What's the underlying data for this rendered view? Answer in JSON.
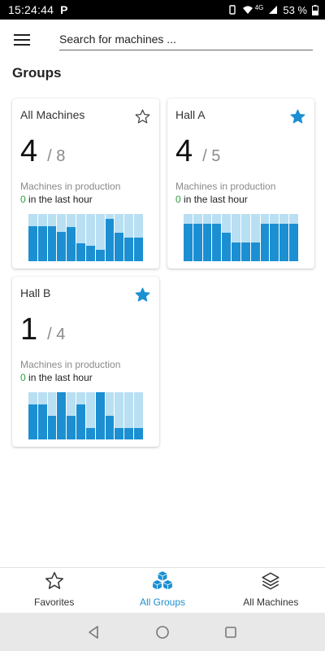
{
  "status_bar": {
    "time": "15:24:44",
    "app_letter": "P",
    "network": "4G",
    "battery": "53 %"
  },
  "search": {
    "placeholder": "Search for machines ..."
  },
  "section_title": "Groups",
  "colors": {
    "accent": "#1b8fd2",
    "bar_background": "#b9dff3",
    "zero_green": "#2e9e3f"
  },
  "groups": [
    {
      "name": "All Machines",
      "favorite": false,
      "count": "4",
      "total": "/ 8",
      "label": "Machines in production",
      "last_hour_count": "0",
      "last_hour_text": " in the last hour",
      "bars": [
        0.75,
        0.75,
        0.75,
        0.62,
        0.72,
        0.38,
        0.33,
        0.25,
        0.9,
        0.6,
        0.5,
        0.5
      ]
    },
    {
      "name": "Hall A",
      "favorite": true,
      "count": "4",
      "total": "/ 5",
      "label": "Machines in production",
      "last_hour_count": "0",
      "last_hour_text": " in the last hour",
      "bars": [
        0.8,
        0.8,
        0.8,
        0.8,
        0.6,
        0.4,
        0.4,
        0.4,
        0.8,
        0.8,
        0.8,
        0.8
      ]
    },
    {
      "name": "Hall B",
      "favorite": true,
      "count": "1",
      "total": "/ 4",
      "label": "Machines in production",
      "last_hour_count": "0",
      "last_hour_text": " in the last hour",
      "bars": [
        0.75,
        0.75,
        0.5,
        1.0,
        0.5,
        0.75,
        0.25,
        1.0,
        0.5,
        0.25,
        0.25,
        0.25
      ]
    }
  ],
  "bottom_nav": [
    {
      "label": "Favorites",
      "icon": "star-outline-icon",
      "active": false
    },
    {
      "label": "All Groups",
      "icon": "cubes-icon",
      "active": true
    },
    {
      "label": "All Machines",
      "icon": "layers-icon",
      "active": false
    }
  ],
  "system_nav": [
    "back-icon",
    "home-icon",
    "recents-icon"
  ]
}
